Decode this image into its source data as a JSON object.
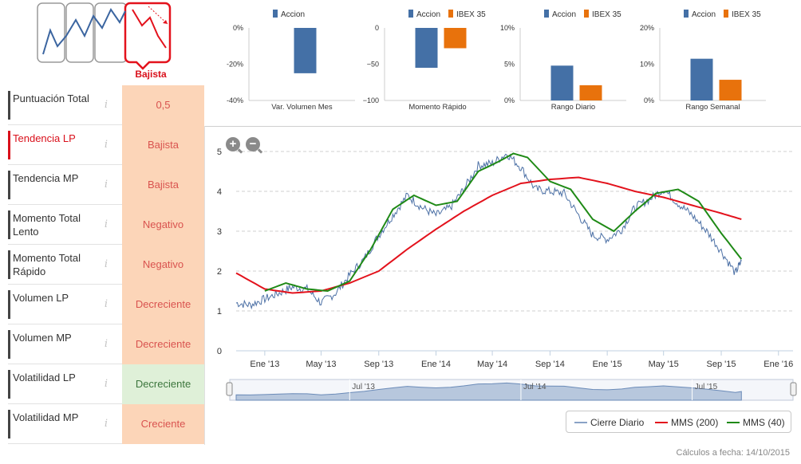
{
  "header": {
    "trend_label": "Bajista"
  },
  "indicators": [
    {
      "label": "Puntuación Total",
      "info": "i",
      "value": "0,5",
      "tone": "bad",
      "active": false
    },
    {
      "label": "Tendencia LP",
      "info": "i",
      "value": "Bajista",
      "tone": "bad",
      "active": true
    },
    {
      "label": "Tendencia MP",
      "info": "i",
      "value": "Bajista",
      "tone": "bad",
      "active": false
    },
    {
      "label": "Momento Total Lento",
      "info": "i",
      "value": "Negativo",
      "tone": "bad",
      "active": false
    },
    {
      "label": "Momento Total Rápido",
      "info": "i",
      "value": "Negativo",
      "tone": "bad",
      "active": false
    },
    {
      "label": "Volumen LP",
      "info": "i",
      "value": "Decreciente",
      "tone": "bad",
      "active": false
    },
    {
      "label": "Volumen MP",
      "info": "i",
      "value": "Decreciente",
      "tone": "bad",
      "active": false
    },
    {
      "label": "Volatilidad LP",
      "info": "i",
      "value": "Decreciente",
      "tone": "good",
      "active": false
    },
    {
      "label": "Volatilidad MP",
      "info": "i",
      "value": "Creciente",
      "tone": "bad",
      "active": false
    }
  ],
  "colors": {
    "accion": "#4470a6",
    "ibex": "#e8720c",
    "cierre": "#4d71a6",
    "mms200": "#e3121c",
    "mms40": "#1f8a16",
    "bad_cell": "#fcd5b8",
    "good_cell": "#dff0d8"
  },
  "chart_data": [
    {
      "type": "bar",
      "title": "Var. Volumen Mes",
      "series": [
        {
          "name": "Accion",
          "values": [
            -25
          ]
        }
      ],
      "yticks": [
        "0%",
        "-20%",
        "-40%"
      ],
      "ylim": [
        -40,
        0
      ]
    },
    {
      "type": "bar",
      "title": "Momento Rápido",
      "series": [
        {
          "name": "Accion",
          "values": [
            -55
          ]
        },
        {
          "name": "IBEX 35",
          "values": [
            -28
          ]
        }
      ],
      "yticks": [
        "0",
        "−50",
        "−100"
      ],
      "ylim": [
        -100,
        0
      ]
    },
    {
      "type": "bar",
      "title": "Rango Diario",
      "series": [
        {
          "name": "Accion",
          "values": [
            4.8
          ]
        },
        {
          "name": "IBEX 35",
          "values": [
            2.1
          ]
        }
      ],
      "yticks": [
        "10%",
        "5%",
        "0%"
      ],
      "ylim": [
        0,
        10
      ]
    },
    {
      "type": "bar",
      "title": "Rango Semanal",
      "series": [
        {
          "name": "Accion",
          "values": [
            11.5
          ]
        },
        {
          "name": "IBEX 35",
          "values": [
            5.7
          ]
        }
      ],
      "yticks": [
        "20%",
        "10%",
        "0%"
      ],
      "ylim": [
        0,
        20
      ]
    },
    {
      "type": "line",
      "yticks": [
        "0",
        "1",
        "2",
        "3",
        "4",
        "5"
      ],
      "ylim": [
        0,
        5
      ],
      "xticks": [
        "Ene '13",
        "May '13",
        "Sep '13",
        "Ene '14",
        "May '14",
        "Sep '14",
        "Ene '15",
        "May '15",
        "Sep '15",
        "Ene '16"
      ],
      "xlim": [
        "2012-11-01",
        "2016-02-01"
      ],
      "navigator_labels": [
        "Jul '13",
        "Jul '14",
        "Jul '15"
      ],
      "series": [
        {
          "name": "Cierre Diario",
          "x": [
            "2012-11-01",
            "2012-12-01",
            "2013-01-01",
            "2013-02-01",
            "2013-03-01",
            "2013-04-01",
            "2013-05-01",
            "2013-06-01",
            "2013-07-01",
            "2013-08-01",
            "2013-09-01",
            "2013-10-01",
            "2013-11-01",
            "2013-12-01",
            "2014-01-01",
            "2014-02-01",
            "2014-03-01",
            "2014-04-01",
            "2014-05-01",
            "2014-06-01",
            "2014-07-01",
            "2014-08-01",
            "2014-09-01",
            "2014-10-01",
            "2014-11-01",
            "2014-12-01",
            "2015-01-01",
            "2015-02-01",
            "2015-03-01",
            "2015-04-01",
            "2015-05-01",
            "2015-06-01",
            "2015-07-01",
            "2015-08-01",
            "2015-09-01",
            "2015-10-01",
            "2015-10-14"
          ],
          "values": [
            1.2,
            1.15,
            1.3,
            1.45,
            1.6,
            1.55,
            1.2,
            1.45,
            1.9,
            2.3,
            2.9,
            3.4,
            3.9,
            3.6,
            3.4,
            3.6,
            4.05,
            4.65,
            4.7,
            4.95,
            4.6,
            4.05,
            4.0,
            3.95,
            3.4,
            2.9,
            2.8,
            3.05,
            3.6,
            3.8,
            4.05,
            3.7,
            3.4,
            3.0,
            2.5,
            1.95,
            2.25
          ]
        },
        {
          "name": "MMS (200)",
          "x": [
            "2012-11-01",
            "2013-01-01",
            "2013-03-01",
            "2013-05-01",
            "2013-07-01",
            "2013-09-01",
            "2013-11-01",
            "2014-01-01",
            "2014-03-01",
            "2014-05-01",
            "2014-07-01",
            "2014-09-01",
            "2014-11-01",
            "2015-01-01",
            "2015-03-01",
            "2015-05-01",
            "2015-07-01",
            "2015-09-01",
            "2015-10-14"
          ],
          "values": [
            1.95,
            1.55,
            1.45,
            1.5,
            1.7,
            2.0,
            2.55,
            3.05,
            3.5,
            3.9,
            4.2,
            4.3,
            4.35,
            4.2,
            4.0,
            3.85,
            3.65,
            3.45,
            3.3
          ]
        },
        {
          "name": "MMS (40)",
          "x": [
            "2013-01-01",
            "2013-02-15",
            "2013-04-01",
            "2013-05-15",
            "2013-07-01",
            "2013-08-15",
            "2013-10-01",
            "2013-11-15",
            "2014-01-01",
            "2014-02-15",
            "2014-04-01",
            "2014-05-15",
            "2014-06-15",
            "2014-07-15",
            "2014-09-01",
            "2014-10-15",
            "2014-12-01",
            "2015-01-15",
            "2015-03-01",
            "2015-04-15",
            "2015-06-01",
            "2015-07-15",
            "2015-09-01",
            "2015-10-14"
          ],
          "values": [
            1.5,
            1.7,
            1.55,
            1.5,
            1.75,
            2.55,
            3.55,
            3.9,
            3.65,
            3.75,
            4.5,
            4.75,
            4.95,
            4.85,
            4.25,
            4.05,
            3.3,
            3.0,
            3.5,
            3.95,
            4.05,
            3.75,
            2.95,
            2.3
          ]
        }
      ]
    }
  ],
  "legend": {
    "cierre": "Cierre Diario",
    "mms200": "MMS (200)",
    "mms40": "MMS (40)"
  },
  "zoom": {
    "in": "+",
    "out": "−"
  },
  "footer": {
    "calc_date": "Cálculos a fecha: 14/10/2015"
  }
}
